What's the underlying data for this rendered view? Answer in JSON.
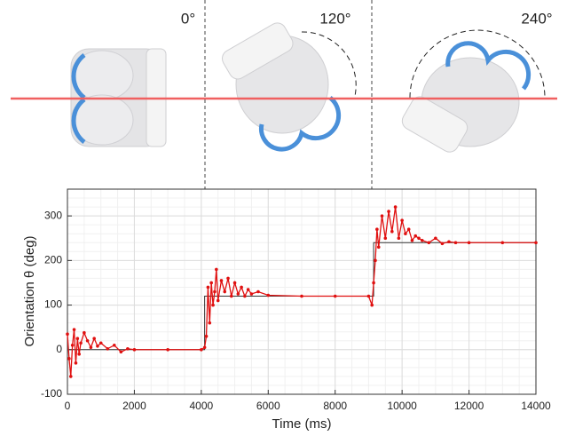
{
  "chart_data": {
    "type": "line",
    "annotations": [
      "0°",
      "120°",
      "240°"
    ],
    "x_label": "Time (ms)",
    "y_label": "Orientation θ (deg)",
    "xlim": [
      0,
      14000
    ],
    "xticks": [
      0,
      2000,
      4000,
      6000,
      8000,
      10000,
      12000,
      14000
    ],
    "ylim": [
      -100,
      360
    ],
    "yticks": [
      -100,
      0,
      100,
      200,
      300
    ],
    "grid": true,
    "series": [
      {
        "color": "#e01010",
        "x": [
          0,
          50,
          100,
          150,
          200,
          250,
          300,
          350,
          400,
          500,
          600,
          700,
          800,
          900,
          1000,
          1200,
          1400,
          1600,
          1800,
          2000,
          3000,
          4000,
          4100,
          4150,
          4200,
          4250,
          4300,
          4350,
          4400,
          4450,
          4500,
          4600,
          4700,
          4800,
          4900,
          5000,
          5100,
          5200,
          5300,
          5400,
          5500,
          5700,
          6000,
          7000,
          8000,
          9000,
          9100,
          9150,
          9200,
          9250,
          9300,
          9400,
          9500,
          9600,
          9700,
          9800,
          9900,
          10000,
          10100,
          10200,
          10300,
          10400,
          10500,
          10600,
          10800,
          11000,
          11200,
          11400,
          11600,
          12000,
          13000,
          14000
        ],
        "values": [
          35,
          -20,
          -60,
          10,
          45,
          -30,
          25,
          -10,
          15,
          38,
          20,
          5,
          25,
          8,
          15,
          2,
          10,
          -5,
          2,
          0,
          0,
          0,
          5,
          30,
          140,
          60,
          150,
          100,
          130,
          180,
          110,
          155,
          130,
          160,
          120,
          150,
          125,
          140,
          120,
          135,
          125,
          130,
          122,
          120,
          120,
          120,
          100,
          150,
          200,
          270,
          230,
          300,
          250,
          310,
          265,
          320,
          250,
          290,
          260,
          270,
          245,
          255,
          250,
          245,
          240,
          250,
          238,
          242,
          240,
          240,
          240,
          240
        ]
      },
      {
        "color": "#333333",
        "x": [
          0,
          4100,
          4100,
          9150,
          9150,
          14000
        ],
        "values": [
          0,
          0,
          120,
          120,
          240,
          240
        ]
      }
    ]
  }
}
